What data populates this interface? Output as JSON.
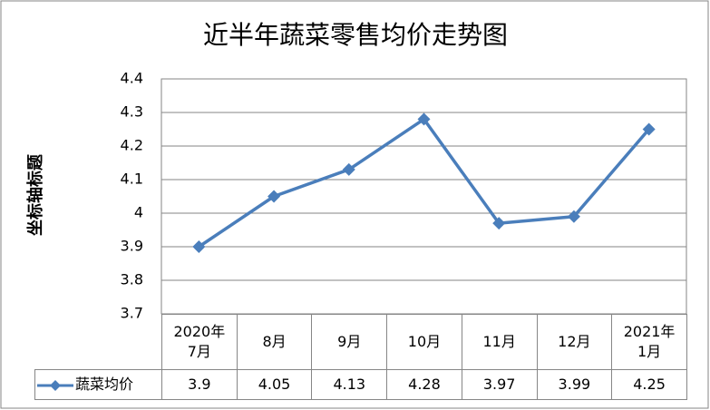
{
  "chart_data": {
    "type": "line",
    "title": "近半年蔬菜零售均价走势图",
    "y_label": "坐标轴标题",
    "categories": [
      "2020年\n7月",
      "8月",
      "9月",
      "10月",
      "11月",
      "12月",
      "2021年\n1月"
    ],
    "series": [
      {
        "name": "蔬菜均价",
        "color": "#4a7ebb",
        "values": [
          3.9,
          4.05,
          4.13,
          4.28,
          3.97,
          3.99,
          4.25
        ]
      }
    ],
    "ylim": [
      3.7,
      4.4
    ],
    "yticks": [
      3.7,
      3.8,
      3.9,
      4,
      4.1,
      4.2,
      4.3,
      4.4
    ],
    "grid": true
  }
}
